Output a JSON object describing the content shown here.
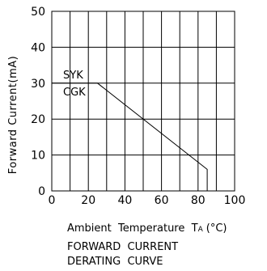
{
  "colors": {
    "line": "#000000",
    "grid": "#000000",
    "background": "#ffffff"
  },
  "chart_data": {
    "type": "line",
    "title": "FORWARD CURRENT DERATING CURVE",
    "title_lines": [
      "FORWARD  CURRENT",
      "DERATING  CURVE"
    ],
    "xlabel": "Ambient Temperature TA (°C)",
    "xlabel_parts": {
      "main": "Ambient  Temperature  T",
      "subscript": "A",
      "unit": "(°C)"
    },
    "ylabel": "Forward Current(mA)",
    "xlim": [
      0,
      100
    ],
    "ylim": [
      0,
      50
    ],
    "x_ticks": [
      0,
      20,
      40,
      60,
      80,
      100
    ],
    "y_ticks": [
      0,
      10,
      20,
      30,
      40,
      50
    ],
    "x_grid_step": 10,
    "y_grid_step": 10,
    "grid": true,
    "series": [
      {
        "name": "SYK / CGK",
        "x": [
          0,
          25,
          85,
          85
        ],
        "y": [
          30,
          30,
          6,
          0
        ]
      }
    ],
    "annotations": [
      "SYK",
      "CGK"
    ]
  }
}
